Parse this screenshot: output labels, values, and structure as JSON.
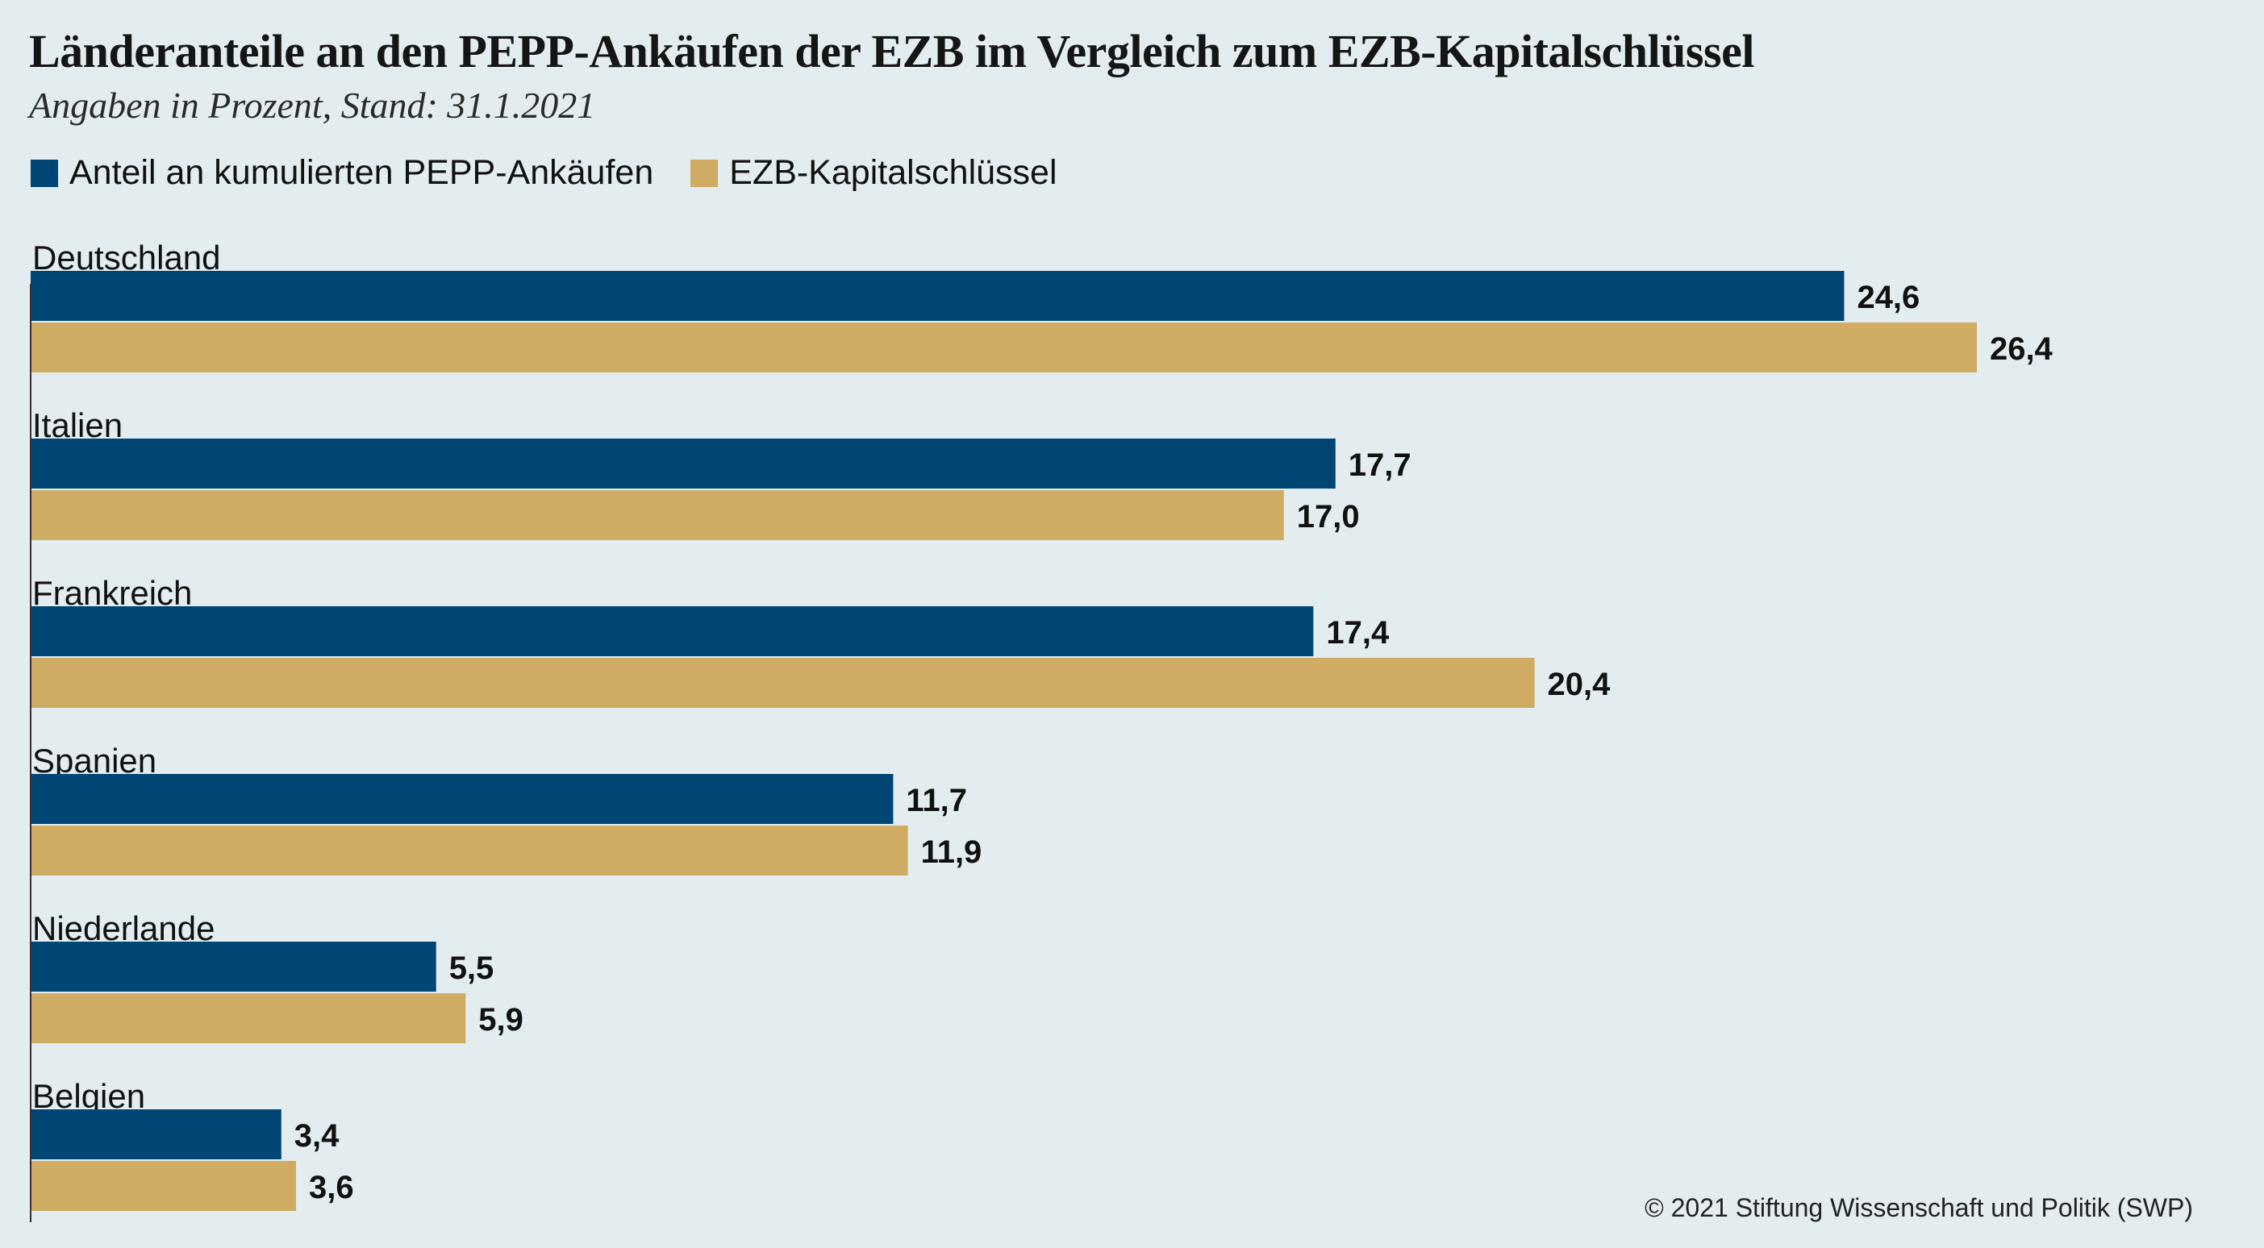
{
  "title": "Länderanteile an den PEPP-Ankäufen der EZB im Vergleich zum EZB-Kapitalschlüssel",
  "subtitle": "Angaben in Prozent, Stand: 31.1.2021",
  "source": "© 2021 Stiftung Wissenschaft und Politik (SWP)",
  "colors": {
    "pepp": "#004675",
    "key": "#cfab63",
    "background": "#e3ecef"
  },
  "legend": [
    {
      "label": "Anteil an kumulierten PEPP-Ankäufen",
      "color": "#004675"
    },
    {
      "label": "EZB-Kapitalschlüssel",
      "color": "#cfab63"
    }
  ],
  "chart_data": {
    "type": "bar",
    "orientation": "horizontal",
    "title": "Länderanteile an den PEPP-Ankäufen der EZB im Vergleich zum EZB-Kapitalschlüssel",
    "subtitle": "Angaben in Prozent, Stand: 31.1.2021",
    "categories": [
      "Deutschland",
      "Italien",
      "Frankreich",
      "Spanien",
      "Niederlande",
      "Belgien"
    ],
    "series": [
      {
        "name": "Anteil an kumulierten PEPP-Ankäufen",
        "values": [
          24.6,
          17.7,
          17.4,
          11.7,
          5.5,
          3.4
        ],
        "labels": [
          "24,6",
          "17,7",
          "17,4",
          "11,7",
          "5,5",
          "3,4"
        ]
      },
      {
        "name": "EZB-Kapitalschlüssel",
        "values": [
          26.4,
          17.0,
          20.4,
          11.9,
          5.9,
          3.6
        ],
        "labels": [
          "26,4",
          "17,0",
          "20,4",
          "11,9",
          "5,9",
          "3,6"
        ]
      }
    ],
    "xlim": [
      0,
      30
    ],
    "grid": false,
    "legend_position": "top-left"
  }
}
